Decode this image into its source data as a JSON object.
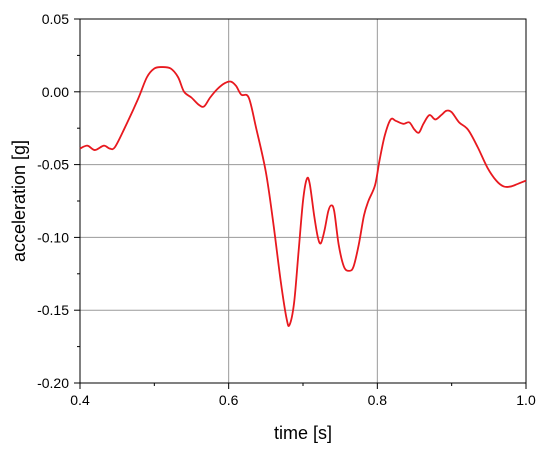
{
  "chart_data": {
    "type": "line",
    "xlabel": "time [s]",
    "ylabel": "acceleration [g]",
    "xlim": [
      0.4,
      1.0
    ],
    "ylim": [
      -0.2,
      0.05
    ],
    "x_ticks": [
      "0.4",
      "0.6",
      "0.8",
      "1.0"
    ],
    "y_ticks": [
      "0.05",
      "0.00",
      "-0.05",
      "-0.10",
      "-0.15",
      "-0.20"
    ],
    "grid": true,
    "series": [
      {
        "color": "#e8191f",
        "points": [
          [
            0.4,
            -0.039
          ],
          [
            0.41,
            -0.037
          ],
          [
            0.42,
            -0.04
          ],
          [
            0.432,
            -0.037
          ],
          [
            0.44,
            -0.039
          ],
          [
            0.447,
            -0.038
          ],
          [
            0.46,
            -0.025
          ],
          [
            0.478,
            -0.005
          ],
          [
            0.49,
            0.01
          ],
          [
            0.5,
            0.016
          ],
          [
            0.51,
            0.017
          ],
          [
            0.522,
            0.016
          ],
          [
            0.532,
            0.01
          ],
          [
            0.54,
            0.0
          ],
          [
            0.55,
            -0.004
          ],
          [
            0.56,
            -0.009
          ],
          [
            0.567,
            -0.01
          ],
          [
            0.575,
            -0.004
          ],
          [
            0.585,
            0.002
          ],
          [
            0.595,
            0.006
          ],
          [
            0.603,
            0.007
          ],
          [
            0.61,
            0.004
          ],
          [
            0.617,
            -0.002
          ],
          [
            0.627,
            -0.004
          ],
          [
            0.637,
            -0.025
          ],
          [
            0.65,
            -0.055
          ],
          [
            0.66,
            -0.09
          ],
          [
            0.67,
            -0.13
          ],
          [
            0.678,
            -0.156
          ],
          [
            0.682,
            -0.16
          ],
          [
            0.688,
            -0.145
          ],
          [
            0.694,
            -0.11
          ],
          [
            0.7,
            -0.075
          ],
          [
            0.705,
            -0.06
          ],
          [
            0.709,
            -0.063
          ],
          [
            0.715,
            -0.085
          ],
          [
            0.72,
            -0.1
          ],
          [
            0.724,
            -0.104
          ],
          [
            0.729,
            -0.095
          ],
          [
            0.734,
            -0.082
          ],
          [
            0.738,
            -0.078
          ],
          [
            0.742,
            -0.082
          ],
          [
            0.748,
            -0.105
          ],
          [
            0.755,
            -0.12
          ],
          [
            0.762,
            -0.123
          ],
          [
            0.768,
            -0.12
          ],
          [
            0.775,
            -0.105
          ],
          [
            0.782,
            -0.085
          ],
          [
            0.788,
            -0.075
          ],
          [
            0.797,
            -0.064
          ],
          [
            0.803,
            -0.047
          ],
          [
            0.81,
            -0.03
          ],
          [
            0.818,
            -0.019
          ],
          [
            0.825,
            -0.02
          ],
          [
            0.835,
            -0.022
          ],
          [
            0.843,
            -0.021
          ],
          [
            0.85,
            -0.026
          ],
          [
            0.856,
            -0.028
          ],
          [
            0.862,
            -0.022
          ],
          [
            0.87,
            -0.016
          ],
          [
            0.878,
            -0.019
          ],
          [
            0.886,
            -0.016
          ],
          [
            0.893,
            -0.013
          ],
          [
            0.9,
            -0.014
          ],
          [
            0.91,
            -0.021
          ],
          [
            0.922,
            -0.026
          ],
          [
            0.935,
            -0.038
          ],
          [
            0.948,
            -0.052
          ],
          [
            0.96,
            -0.061
          ],
          [
            0.97,
            -0.065
          ],
          [
            0.98,
            -0.065
          ],
          [
            0.99,
            -0.063
          ],
          [
            1.0,
            -0.061
          ]
        ]
      }
    ]
  }
}
